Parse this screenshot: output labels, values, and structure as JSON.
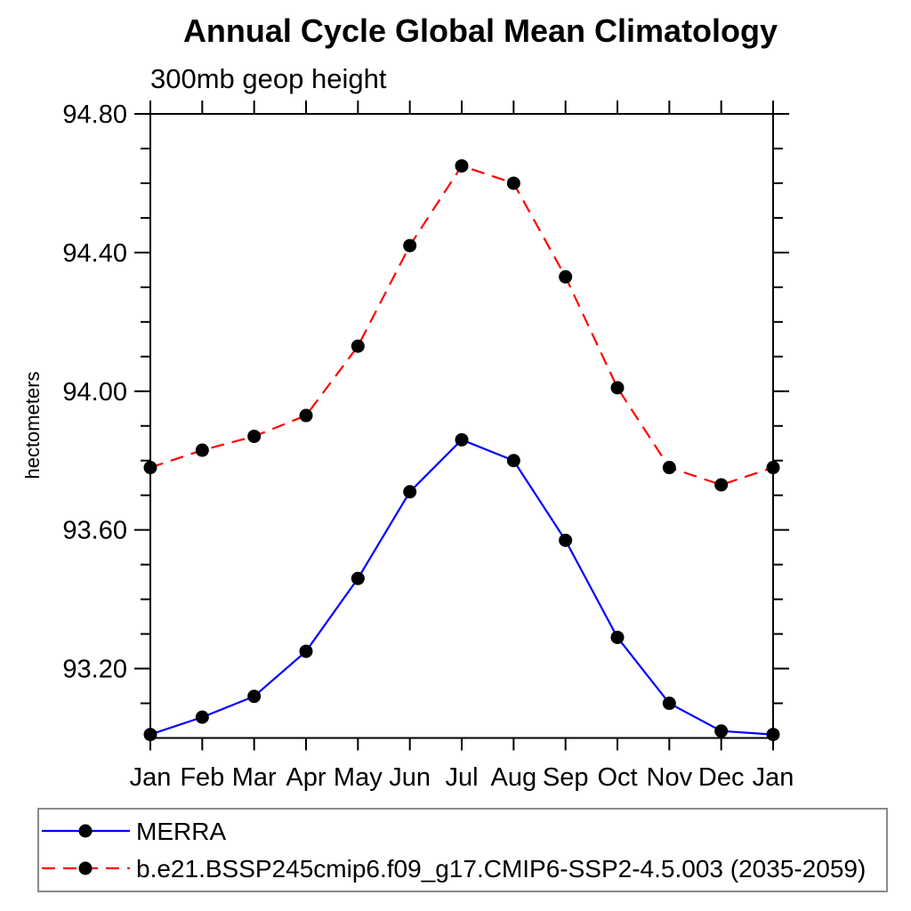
{
  "chart_data": {
    "type": "line",
    "title": "Annual Cycle Global Mean Climatology",
    "subtitle": "300mb geop height",
    "ylabel": "hectometers",
    "x_categories": [
      "Jan",
      "Feb",
      "Mar",
      "Apr",
      "May",
      "Jun",
      "Jul",
      "Aug",
      "Sep",
      "Oct",
      "Nov",
      "Dec",
      "Jan"
    ],
    "ylim": [
      93.0,
      94.8
    ],
    "y_major_ticks": [
      {
        "value": 94.8,
        "label": "94.80"
      },
      {
        "value": 94.4,
        "label": "94.40"
      },
      {
        "value": 94.0,
        "label": "94.00"
      },
      {
        "value": 93.6,
        "label": "93.60"
      },
      {
        "value": 93.2,
        "label": "93.20"
      }
    ],
    "y_minor_step": 0.1,
    "grid": false,
    "legend_position": "bottom-left-box",
    "axis_color": "#000000",
    "series": [
      {
        "name": "MERRA",
        "color": "#0000ff",
        "line_style": "solid",
        "marker": "filled-circle",
        "marker_color": "#000000",
        "values": [
          93.01,
          93.06,
          93.12,
          93.25,
          93.46,
          93.71,
          93.86,
          93.8,
          93.57,
          93.29,
          93.1,
          93.02,
          93.01
        ]
      },
      {
        "name": "b.e21.BSSP245cmip6.f09_g17.CMIP6-SSP2-4.5.003 (2035-2059)",
        "color": "#ff0000",
        "line_style": "dashed",
        "marker": "filled-circle",
        "marker_color": "#000000",
        "values": [
          93.78,
          93.83,
          93.87,
          93.93,
          94.13,
          94.42,
          94.65,
          94.6,
          94.33,
          94.01,
          93.78,
          93.73,
          93.78
        ]
      }
    ]
  }
}
